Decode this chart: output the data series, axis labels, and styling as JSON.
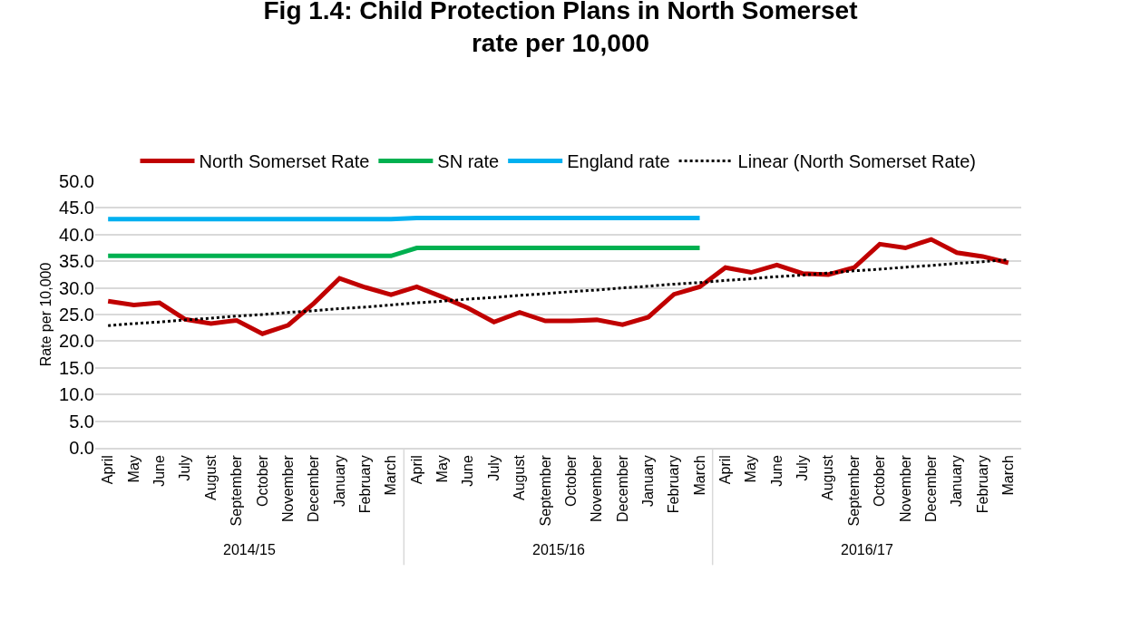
{
  "chart_data": {
    "type": "line",
    "title": "Fig 1.4: Child Protection Plans in North Somerset\nrate per 10,000",
    "ylabel": "Rate per 10,000",
    "categories": [
      "April",
      "May",
      "June",
      "July",
      "August",
      "September",
      "October",
      "November",
      "December",
      "January",
      "February",
      "March",
      "April",
      "May",
      "June",
      "July",
      "August",
      "September",
      "October",
      "November",
      "December",
      "January",
      "February",
      "March",
      "April",
      "May",
      "June",
      "July",
      "August",
      "September",
      "October",
      "November",
      "December",
      "January",
      "February",
      "March"
    ],
    "series": [
      {
        "name": "North Somerset Rate",
        "color": "#c00000",
        "line_style": "solid",
        "values": [
          27.5,
          26.8,
          27.2,
          24.1,
          23.3,
          23.9,
          21.4,
          23.0,
          27.1,
          31.8,
          30.1,
          28.7,
          30.2,
          28.3,
          26.2,
          23.6,
          25.4,
          23.8,
          23.8,
          24.0,
          23.1,
          24.5,
          28.8,
          30.2,
          33.8,
          32.9,
          34.3,
          32.7,
          32.5,
          33.8,
          38.2,
          37.5,
          39.1,
          36.6,
          35.9,
          34.7
        ]
      },
      {
        "name": "SN rate",
        "color": "#00b050",
        "line_style": "solid",
        "values": [
          36.0,
          36.0,
          36.0,
          36.0,
          36.0,
          36.0,
          36.0,
          36.0,
          36.0,
          36.0,
          36.0,
          36.0,
          37.5,
          37.5,
          37.5,
          37.5,
          37.5,
          37.5,
          37.5,
          37.5,
          37.5,
          37.5,
          37.5,
          37.5,
          null,
          null,
          null,
          null,
          null,
          null,
          null,
          null,
          null,
          null,
          null,
          null
        ]
      },
      {
        "name": "England rate",
        "color": "#00b0f0",
        "line_style": "solid",
        "values": [
          42.9,
          42.9,
          42.9,
          42.9,
          42.9,
          42.9,
          42.9,
          42.9,
          42.9,
          42.9,
          42.9,
          42.9,
          43.1,
          43.1,
          43.1,
          43.1,
          43.1,
          43.1,
          43.1,
          43.1,
          43.1,
          43.1,
          43.1,
          43.1,
          null,
          null,
          null,
          null,
          null,
          null,
          null,
          null,
          null,
          null,
          null,
          null
        ]
      },
      {
        "name": "Linear (North Somerset Rate)",
        "color": "#000000",
        "line_style": "dotted",
        "values": [
          22.9,
          23.3,
          23.6,
          24.0,
          24.3,
          24.7,
          25.0,
          25.4,
          25.7,
          26.1,
          26.4,
          26.8,
          27.2,
          27.5,
          27.9,
          28.2,
          28.6,
          28.9,
          29.3,
          29.6,
          30.0,
          30.3,
          30.7,
          31.0,
          31.4,
          31.7,
          32.1,
          32.4,
          32.8,
          33.2,
          33.5,
          33.9,
          34.2,
          34.6,
          34.9,
          35.3
        ]
      }
    ],
    "annotations": [
      "2014/15",
      "2015/16",
      "2016/17"
    ],
    "ylim": [
      0,
      50
    ],
    "yticks": [
      {
        "value": 0,
        "label": "0.0"
      },
      {
        "value": 5,
        "label": "5.0"
      },
      {
        "value": 10,
        "label": "10.0"
      },
      {
        "value": 15,
        "label": "15.0"
      },
      {
        "value": 20,
        "label": "20.0"
      },
      {
        "value": 25,
        "label": "25.0"
      },
      {
        "value": 30,
        "label": "30.0"
      },
      {
        "value": 35,
        "label": "35.0"
      },
      {
        "value": 40,
        "label": "40.0"
      },
      {
        "value": 45,
        "label": "45.0"
      },
      {
        "value": 50,
        "label": "50.0"
      }
    ],
    "grid": "y",
    "legend": "top",
    "marker": "none"
  }
}
